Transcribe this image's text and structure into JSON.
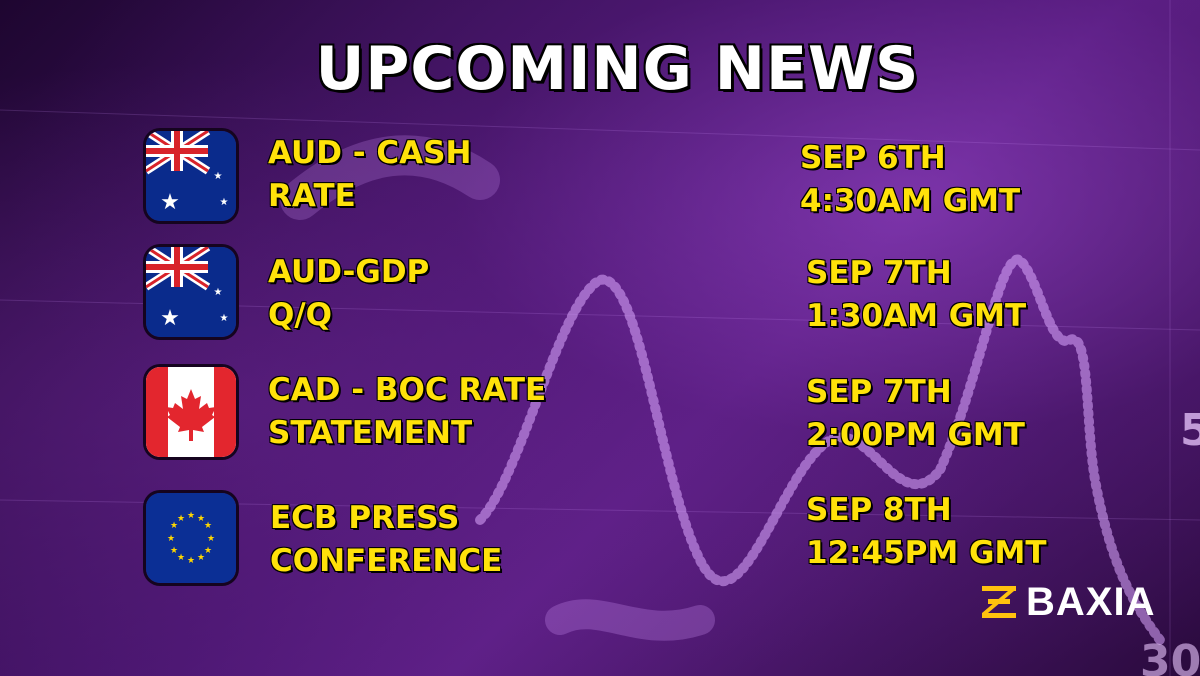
{
  "title": "UPCOMING NEWS",
  "events": [
    {
      "flag": "australia-flag",
      "label_line1": "AUD - CASH",
      "label_line2": "RATE",
      "date_line1": "SEP 6TH",
      "date_line2": "4:30AM GMT"
    },
    {
      "flag": "australia-flag",
      "label_line1": "AUD-GDP",
      "label_line2": "Q/Q",
      "date_line1": "SEP 7TH",
      "date_line2": "1:30AM GMT"
    },
    {
      "flag": "canada-flag",
      "label_line1": "CAD - BOC RATE",
      "label_line2": "STATEMENT",
      "date_line1": "SEP 7TH",
      "date_line2": "2:00PM GMT"
    },
    {
      "flag": "eu-flag",
      "label_line1": "ECB PRESS",
      "label_line2": "CONFERENCE",
      "date_line1": "SEP 8TH",
      "date_line2": "12:45PM GMT"
    }
  ],
  "brand": {
    "name": "BAXIA",
    "icon": "baxia-logo-icon"
  },
  "colors": {
    "accent": "#ffe20a",
    "title": "#ffffff",
    "background": "#4a1670"
  }
}
